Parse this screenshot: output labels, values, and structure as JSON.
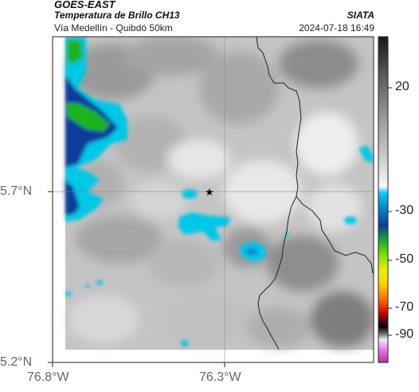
{
  "header": {
    "satellite": "GOES-EAST",
    "product": "Temperatura de Brillo CH13",
    "route": "Vía Medellín - Quibdó 50km",
    "organization": "SIATA",
    "timestamp": "2024-07-18 16:49"
  },
  "axes": {
    "lat_ticks": [
      "5.7°N",
      "5.2°N"
    ],
    "lon_ticks": [
      "76.8°W",
      "76.3°W"
    ]
  },
  "colorbar": {
    "ticks": [
      "20",
      "-30",
      "-50",
      "-70",
      "-90"
    ],
    "colors": [
      "#202020",
      "#f0f0f0",
      "#00c8e6",
      "#0a3c9c",
      "#1fb31f",
      "#f0f000",
      "#e60000",
      "#000000",
      "#cc44cc"
    ]
  },
  "map": {
    "marker": "star-icon",
    "ocean_color": "#ffffff",
    "cloud_colors": {
      "warm": "#9a9a9a",
      "cold": "#00c8e6",
      "colder": "#0a3c9c",
      "coldest": "#1fb31f"
    }
  }
}
